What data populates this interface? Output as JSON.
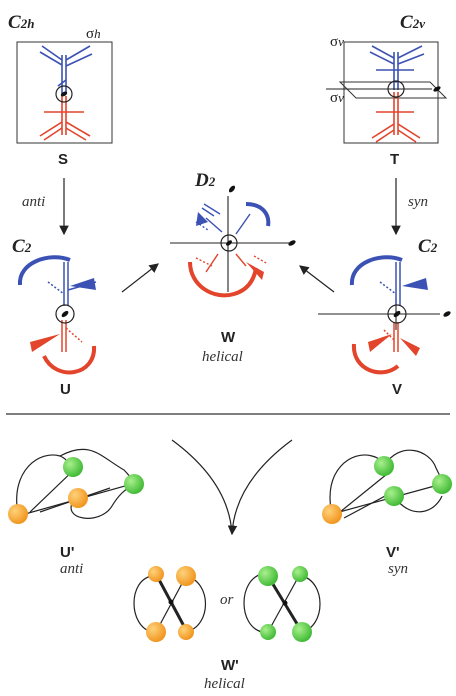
{
  "top": {
    "S": {
      "point_group": "C",
      "sub": "2h",
      "sigma": "σ",
      "sigma_sub": "h",
      "label": "S"
    },
    "T": {
      "point_group": "C",
      "sub": "2v",
      "sigma": "σ",
      "sigma_sub": "v",
      "label": "T"
    },
    "U": {
      "point_group": "C",
      "sub": "2",
      "label": "U"
    },
    "V": {
      "point_group": "C",
      "sub": "2",
      "label": "V"
    },
    "W": {
      "point_group": "D",
      "sub": "2",
      "label": "W",
      "note": "helical"
    },
    "arrow_left": "anti",
    "arrow_right": "syn"
  },
  "bottom": {
    "U_prime": {
      "label": "U'",
      "note": "anti"
    },
    "V_prime": {
      "label": "V'",
      "note": "syn"
    },
    "W_prime": {
      "label": "W'",
      "note": "helical"
    },
    "connector": "or"
  },
  "colors": {
    "blue": "#3b52b4",
    "red": "#e2452b",
    "orange": "#f39a1a",
    "green": "#4cc43a",
    "line": "#222222"
  }
}
